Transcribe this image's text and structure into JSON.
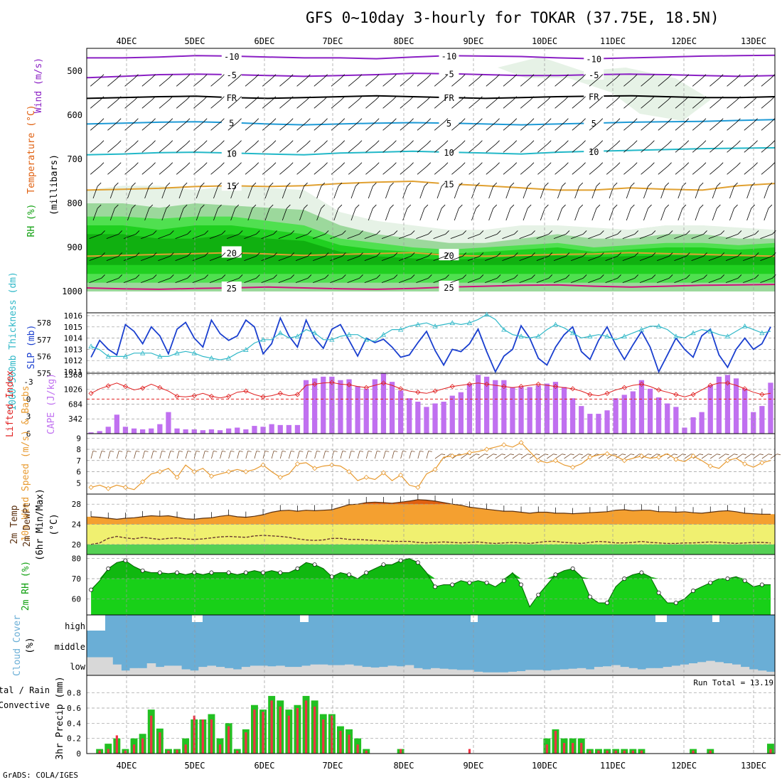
{
  "title": "GFS 0~10day 3-hourly for TOKAR (37.75E, 18.5N)",
  "footer": "GrADS: COLA/IGES",
  "colors": {
    "wind_temp_purple": "#8a1fc4",
    "temp_blue": "#1e9ad6",
    "temp_cyan": "#22b8c8",
    "temp_orange": "#e0a030",
    "temp_magenta": "#d0107a",
    "slp_blue": "#1a3fcf",
    "thickness_cyan": "#30b8c8",
    "cape_purple": "#c070f0",
    "li_red": "#e02020",
    "wind_orange": "#e89a30",
    "temp_dark_orange": "#e06010",
    "rh_green": "#10c010",
    "cloud_blue": "#6aaed6",
    "cloud_gray": "#d8d8d8",
    "precip_green": "#22c022",
    "precip_red": "#ee3344"
  },
  "chart_data": [
    {
      "type": "heatmap",
      "panel": "upper-air",
      "ylabel_parts": [
        "Wind (m/s)",
        "Temperature (°C)",
        "RH (%)"
      ],
      "ylabel2": "(millibars)",
      "x_days": [
        "4DEC",
        "5DEC",
        "6DEC",
        "7DEC",
        "8DEC",
        "9DEC",
        "10DEC",
        "11DEC",
        "12DEC",
        "13DEC"
      ],
      "y_ticks": [
        500,
        600,
        700,
        800,
        900,
        1000
      ],
      "isotherm_labels": [
        {
          "label": "-10",
          "color": "wind_temp_purple",
          "p": [
            470,
            470,
            468,
            465,
            466,
            468,
            470,
            470,
            472,
            468,
            465,
            466,
            467,
            470,
            472,
            470,
            468,
            466,
            465,
            464
          ]
        },
        {
          "label": "-5",
          "color": "wind_temp_purple",
          "p": [
            515,
            512,
            508,
            507,
            508,
            510,
            512,
            510,
            508,
            505,
            506,
            508,
            510,
            510,
            508,
            507,
            508,
            510,
            512,
            510
          ]
        },
        {
          "label": "FR",
          "color": "#000000",
          "p": [
            562,
            560,
            558,
            557,
            560,
            562,
            560,
            558,
            556,
            558,
            560,
            562,
            560,
            558,
            557,
            556,
            558,
            560,
            560,
            558
          ]
        },
        {
          "label": "5",
          "color": "temp_blue",
          "p": [
            620,
            618,
            616,
            615,
            617,
            620,
            622,
            620,
            618,
            617,
            618,
            620,
            622,
            620,
            618,
            616,
            615,
            614,
            612,
            610
          ]
        },
        {
          "label": "10",
          "color": "temp_cyan",
          "p": [
            690,
            688,
            685,
            684,
            686,
            688,
            690,
            686,
            684,
            682,
            684,
            686,
            688,
            684,
            682,
            680,
            678,
            676,
            675,
            674
          ]
        },
        {
          "label": "15",
          "color": "temp_orange",
          "p": [
            770,
            768,
            766,
            762,
            760,
            762,
            760,
            755,
            752,
            750,
            756,
            760,
            765,
            770,
            770,
            765,
            768,
            770,
            760,
            755
          ]
        },
        {
          "label": "20",
          "color": "temp_orange",
          "p": [
            920,
            918,
            916,
            914,
            912,
            915,
            918,
            916,
            914,
            912,
            918,
            920,
            918,
            916,
            915,
            912,
            914,
            916,
            918,
            920
          ]
        },
        {
          "label": "25",
          "color": "temp_magenta",
          "p": [
            992,
            994,
            995,
            993,
            992,
            990,
            992,
            994,
            995,
            993,
            990,
            988,
            986,
            985,
            988,
            990,
            988,
            986,
            985,
            984
          ]
        }
      ]
    },
    {
      "type": "line",
      "panel": "slp-thickness",
      "ylabel": "SLP (mb)",
      "ylabel2": "1000-500mb Thickness (dm)",
      "yticks_left": [
        575,
        576,
        577,
        578
      ],
      "yticks_right": [
        1011,
        1012,
        1013,
        1014,
        1015,
        1016
      ],
      "series": [
        {
          "name": "SLP",
          "axis": "right",
          "values": [
            1012.3,
            1013.8,
            1013.0,
            1012.5,
            1015.2,
            1014.6,
            1013.5,
            1015.0,
            1014.2,
            1012.6,
            1014.8,
            1015.4,
            1014.0,
            1013.2,
            1015.6,
            1014.4,
            1013.8,
            1014.2,
            1015.6,
            1015.0,
            1012.6,
            1013.5,
            1015.8,
            1014.2,
            1013.2,
            1015.6,
            1014.0,
            1013.1,
            1014.8,
            1015.2,
            1013.8,
            1012.4,
            1014.0,
            1013.6,
            1013.9,
            1013.2,
            1012.3,
            1012.5,
            1013.6,
            1014.6,
            1012.9,
            1011.6,
            1013.0,
            1012.8,
            1013.5,
            1014.8,
            1012.8,
            1011.0,
            1012.4,
            1013.0,
            1015.1,
            1014.0,
            1012.2,
            1011.6,
            1013.2,
            1014.3,
            1015.0,
            1012.8,
            1012.1,
            1013.8,
            1015.0,
            1013.4,
            1012.1,
            1013.4,
            1014.6,
            1013.2,
            1011.0,
            1012.5,
            1014.0,
            1013.0,
            1012.3,
            1014.2,
            1014.8,
            1012.5,
            1011.4,
            1013.0,
            1014.0,
            1013.0,
            1013.5,
            1015.0
          ]
        },
        {
          "name": "Thickness",
          "axis": "left",
          "values": [
            576.6,
            576.4,
            576.0,
            576.0,
            576.0,
            576.2,
            576.2,
            576.2,
            576.0,
            576.0,
            576.2,
            576.3,
            576.2,
            576.0,
            575.9,
            575.8,
            575.9,
            576.2,
            576.4,
            576.8,
            577.0,
            577.0,
            577.4,
            577.1,
            577.2,
            577.6,
            577.4,
            577.0,
            577.0,
            577.2,
            577.3,
            577.3,
            577.0,
            576.9,
            577.3,
            577.6,
            577.6,
            577.8,
            577.9,
            578.0,
            577.8,
            577.9,
            578.0,
            577.9,
            578.0,
            578.2,
            578.5,
            578.2,
            577.6,
            577.3,
            577.2,
            577.1,
            577.2,
            577.6,
            577.9,
            577.7,
            577.4,
            577.1,
            577.2,
            577.3,
            577.2,
            577.0,
            577.2,
            577.4,
            577.6,
            577.8,
            577.8,
            577.6,
            577.2,
            577.1,
            577.4,
            577.6,
            577.5,
            577.3,
            577.2,
            577.5,
            577.8,
            577.6,
            577.4,
            577.5
          ]
        }
      ]
    },
    {
      "type": "bar",
      "panel": "cape-li",
      "ylabel": "CAPE (J/kg)",
      "ylabel2": "Lifted Index",
      "yticks_left": [
        "6",
        "3",
        "0",
        "-3"
      ],
      "yticks_right": [
        342,
        684,
        1026,
        1368
      ],
      "cape": [
        30,
        60,
        160,
        440,
        160,
        120,
        100,
        120,
        220,
        500,
        120,
        100,
        100,
        80,
        100,
        80,
        120,
        140,
        100,
        180,
        160,
        220,
        200,
        200,
        200,
        1240,
        1280,
        1320,
        1320,
        1240,
        1260,
        1100,
        1040,
        1260,
        1400,
        1200,
        1000,
        820,
        740,
        620,
        700,
        740,
        880,
        960,
        1160,
        1360,
        1320,
        1240,
        1240,
        1080,
        1080,
        1080,
        1120,
        1160,
        1200,
        1080,
        820,
        640,
        460,
        460,
        540,
        820,
        900,
        980,
        1240,
        1040,
        840,
        700,
        620,
        140,
        380,
        500,
        1120,
        1320,
        1360,
        1280,
        1040,
        500,
        640,
        1180
      ],
      "li": [
        -1.0,
        -1.8,
        -2.3,
        -2.8,
        -2.2,
        -1.6,
        -1.9,
        -2.6,
        -2.0,
        -1.4,
        -0.5,
        -0.4,
        -0.6,
        -1.0,
        -0.5,
        -0.2,
        -0.5,
        -1.2,
        -1.4,
        -0.8,
        -0.4,
        -0.6,
        -1.0,
        -0.6,
        -0.8,
        -2.4,
        -2.6,
        -2.8,
        -2.9,
        -2.6,
        -2.5,
        -2.2,
        -2.0,
        -2.4,
        -2.8,
        -2.4,
        -1.8,
        -1.4,
        -1.2,
        -1.0,
        -1.4,
        -1.8,
        -2.2,
        -2.4,
        -2.6,
        -2.8,
        -2.6,
        -2.4,
        -2.2,
        -2.0,
        -2.2,
        -2.4,
        -2.6,
        -2.4,
        -2.2,
        -2.0,
        -1.8,
        -1.4,
        -0.8,
        -0.6,
        -1.0,
        -1.6,
        -2.0,
        -2.4,
        -2.6,
        -2.2,
        -1.6,
        -1.2,
        -0.8,
        -0.4,
        -0.8,
        -1.6,
        -2.4,
        -2.8,
        -2.8,
        -2.4,
        -1.8,
        -1.2,
        -0.8,
        -1.0
      ]
    },
    {
      "type": "line",
      "panel": "10m-wind",
      "ylabel": "10m Wind Speed (m/s) & Barbs",
      "yticks": [
        5,
        6,
        7,
        8,
        9
      ],
      "values": [
        4.6,
        4.8,
        4.5,
        4.8,
        4.6,
        4.4,
        5.1,
        5.8,
        6.0,
        6.3,
        5.5,
        6.6,
        6.0,
        6.3,
        5.6,
        5.8,
        6.0,
        6.2,
        6.0,
        6.2,
        6.6,
        6.0,
        5.5,
        5.8,
        6.7,
        6.8,
        6.3,
        6.5,
        6.6,
        6.5,
        6.0,
        5.2,
        5.5,
        5.3,
        5.9,
        5.2,
        5.7,
        4.8,
        4.6,
        5.8,
        6.2,
        7.3,
        7.4,
        7.5,
        7.7,
        7.8,
        8.0,
        8.2,
        8.4,
        8.2,
        8.6,
        7.8,
        7.0,
        6.8,
        7.0,
        6.6,
        6.4,
        6.7,
        7.3,
        7.5,
        7.6,
        7.4,
        7.0,
        7.2,
        7.4,
        7.2,
        7.3,
        7.6,
        7.1,
        6.9,
        7.4,
        7.0,
        6.5,
        6.3,
        7.0,
        7.2,
        6.7,
        6.4,
        6.8,
        7.0
      ]
    },
    {
      "type": "area",
      "panel": "2m-temp",
      "ylabel": "2m Temp 2m DewPt (6hr Min/Max) (°C)",
      "yticks": [
        20,
        24,
        28
      ],
      "temp": [
        25.5,
        25.4,
        25.2,
        25.0,
        25.2,
        25.3,
        25.5,
        25.7,
        25.6,
        25.7,
        25.4,
        25.1,
        25.0,
        25.2,
        25.3,
        25.6,
        25.8,
        25.5,
        25.4,
        25.6,
        25.9,
        26.4,
        26.7,
        26.8,
        26.6,
        26.8,
        26.7,
        26.8,
        26.9,
        27.4,
        27.9,
        28.0,
        28.3,
        28.4,
        28.3,
        28.2,
        28.4,
        28.6,
        28.9,
        28.8,
        28.6,
        28.3,
        28.0,
        27.8,
        27.4,
        27.2,
        27.0,
        26.8,
        26.6,
        26.6,
        26.4,
        26.2,
        26.4,
        26.4,
        26.2,
        26.2,
        26.1,
        26.2,
        26.3,
        26.4,
        26.5,
        26.8,
        26.9,
        26.7,
        26.8,
        26.8,
        26.5,
        26.5,
        26.4,
        26.5,
        26.3,
        26.2,
        26.4,
        26.6,
        26.7,
        26.5,
        26.2,
        26.1,
        26.0,
        26.0
      ],
      "dewpoint": [
        20.0,
        20.3,
        21.2,
        21.6,
        21.3,
        21.1,
        21.4,
        21.2,
        21.0,
        21.2,
        21.3,
        21.1,
        21.0,
        21.1,
        21.3,
        21.5,
        21.6,
        21.5,
        21.4,
        21.7,
        21.8,
        21.7,
        21.6,
        21.4,
        21.1,
        20.9,
        20.8,
        20.9,
        21.2,
        21.2,
        21.0,
        21.0,
        20.9,
        20.8,
        20.7,
        20.6,
        20.6,
        20.6,
        20.4,
        20.3,
        20.4,
        20.5,
        20.4,
        20.3,
        20.4,
        20.5,
        20.3,
        20.2,
        20.3,
        20.4,
        20.3,
        20.2,
        20.4,
        20.6,
        20.6,
        20.4,
        20.3,
        20.2,
        20.4,
        20.6,
        20.5,
        20.3,
        20.3,
        20.4,
        20.6,
        20.4,
        20.3,
        20.2,
        20.2,
        20.3,
        20.3,
        20.4,
        20.5,
        20.4,
        20.3,
        20.2,
        20.3,
        20.4,
        20.4,
        20.3
      ]
    },
    {
      "type": "area",
      "panel": "2m-rh",
      "ylabel": "2m RH (%)",
      "yticks": [
        60,
        70,
        80
      ],
      "values": [
        64.5,
        69,
        75,
        78,
        79,
        76,
        74,
        73,
        73,
        72.5,
        73,
        72,
        73,
        72,
        73,
        73,
        73,
        72,
        73,
        74,
        73,
        74,
        73,
        73,
        75,
        78,
        77,
        75,
        71,
        73,
        72,
        70,
        73,
        75,
        77,
        77,
        79,
        80,
        78,
        73,
        66,
        67,
        67,
        69,
        68,
        69,
        68,
        66,
        69,
        73,
        67,
        56,
        62,
        67,
        72,
        74,
        75,
        71,
        61,
        58,
        58,
        66,
        70,
        72,
        73,
        71,
        63,
        58,
        58,
        60,
        64,
        66,
        68,
        70,
        70,
        71,
        69,
        66,
        67,
        67
      ]
    },
    {
      "type": "area",
      "panel": "cloud-cover",
      "ylabel": "Cloud Cover (%)",
      "levels": [
        "high",
        "middle",
        "low"
      ],
      "low": [
        30,
        30,
        30,
        18,
        8,
        12,
        12,
        20,
        14,
        16,
        16,
        10,
        8,
        14,
        16,
        14,
        12,
        10,
        14,
        16,
        16,
        15,
        16,
        14,
        14,
        16,
        18,
        18,
        17,
        17,
        18,
        16,
        14,
        13,
        14,
        16,
        15,
        17,
        12,
        10,
        12,
        11,
        10,
        9,
        9,
        6,
        5,
        5,
        5,
        6,
        7,
        9,
        9,
        8,
        9,
        10,
        11,
        12,
        10,
        14,
        15,
        17,
        14,
        12,
        10,
        12,
        12,
        14,
        16,
        18,
        20,
        22,
        24,
        22,
        20,
        18,
        14,
        10,
        8,
        6
      ]
    },
    {
      "type": "bar",
      "panel": "precip",
      "ylabel": "3hr Precip (mm)",
      "ylabel2": "Total / Rain Convective",
      "run_total_label": "Run Total = 13.19",
      "yticks": [
        0,
        0.2,
        0.4,
        0.6,
        0.8
      ],
      "total": [
        0,
        0.06,
        0.13,
        0.2,
        0.06,
        0.2,
        0.26,
        0.58,
        0.33,
        0.06,
        0.06,
        0.2,
        0.45,
        0.45,
        0.52,
        0.2,
        0.4,
        0.06,
        0.32,
        0.64,
        0.58,
        0.76,
        0.7,
        0.58,
        0.64,
        0.76,
        0.7,
        0.52,
        0.52,
        0.36,
        0.32,
        0.2,
        0.06,
        0,
        0,
        0,
        0.06,
        0,
        0,
        0,
        0,
        0,
        0,
        0,
        0,
        0,
        0,
        0,
        0,
        0,
        0,
        0,
        0,
        0.2,
        0.32,
        0.2,
        0.2,
        0.2,
        0.06,
        0.06,
        0.06,
        0.06,
        0.06,
        0.06,
        0.06,
        0,
        0,
        0,
        0,
        0,
        0.06,
        0,
        0.06,
        0,
        0,
        0,
        0,
        0,
        0,
        0.13
      ],
      "rain": [
        0,
        0.04,
        0.06,
        0.24,
        0.04,
        0.12,
        0.2,
        0.5,
        0.28,
        0.04,
        0.05,
        0.12,
        0.5,
        0.45,
        0.45,
        0.12,
        0.36,
        0.04,
        0.28,
        0.58,
        0.55,
        0.7,
        0.62,
        0.5,
        0.6,
        0.7,
        0.62,
        0.45,
        0.5,
        0.3,
        0.25,
        0.12,
        0.04,
        0,
        0,
        0,
        0.06,
        0,
        0,
        0,
        0,
        0,
        0,
        0,
        0.06,
        0,
        0,
        0,
        0,
        0,
        0,
        0,
        0,
        0.12,
        0.3,
        0.14,
        0.14,
        0.14,
        0.04,
        0.04,
        0.04,
        0.04,
        0.04,
        0.04,
        0.04,
        0,
        0,
        0,
        0,
        0,
        0.04,
        0,
        0.04,
        0,
        0,
        0,
        0,
        0,
        0,
        0.06
      ]
    }
  ]
}
